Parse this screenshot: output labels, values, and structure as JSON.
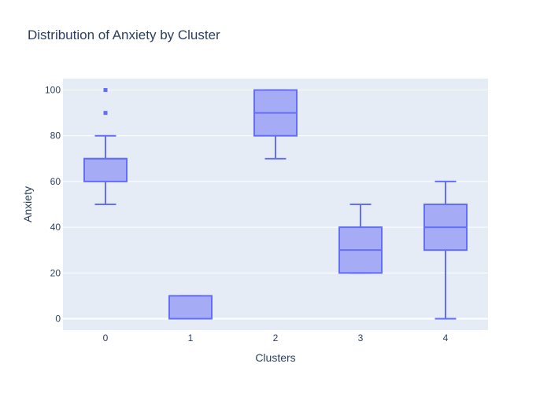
{
  "chart_data": {
    "type": "box",
    "title": "Distribution of Anxiety by Cluster",
    "xlabel": "Clusters",
    "ylabel": "Anxiety",
    "categories": [
      "0",
      "1",
      "2",
      "3",
      "4"
    ],
    "ylim": [
      -5,
      105
    ],
    "yticks": [
      0,
      20,
      40,
      60,
      80,
      100
    ],
    "grid": true,
    "colors": {
      "box_fill": "#a5abf5",
      "box_line": "#636efa",
      "plot_bg": "#e5ecf6",
      "gridline": "#ffffff",
      "text": "#2a3f5f"
    },
    "boxes": [
      {
        "category": "0",
        "whisker_low": 50,
        "q1": 60,
        "median": 70,
        "q3": 70,
        "whisker_high": 80,
        "outliers": [
          90,
          100
        ]
      },
      {
        "category": "1",
        "whisker_low": 0,
        "q1": 0,
        "median": 0,
        "q3": 10,
        "whisker_high": 10,
        "outliers": []
      },
      {
        "category": "2",
        "whisker_low": 70,
        "q1": 80,
        "median": 90,
        "q3": 100,
        "whisker_high": 100,
        "outliers": []
      },
      {
        "category": "3",
        "whisker_low": 20,
        "q1": 20,
        "median": 30,
        "q3": 40,
        "whisker_high": 50,
        "outliers": []
      },
      {
        "category": "4",
        "whisker_low": 0,
        "q1": 30,
        "median": 40,
        "q3": 50,
        "whisker_high": 60,
        "outliers": []
      }
    ]
  }
}
